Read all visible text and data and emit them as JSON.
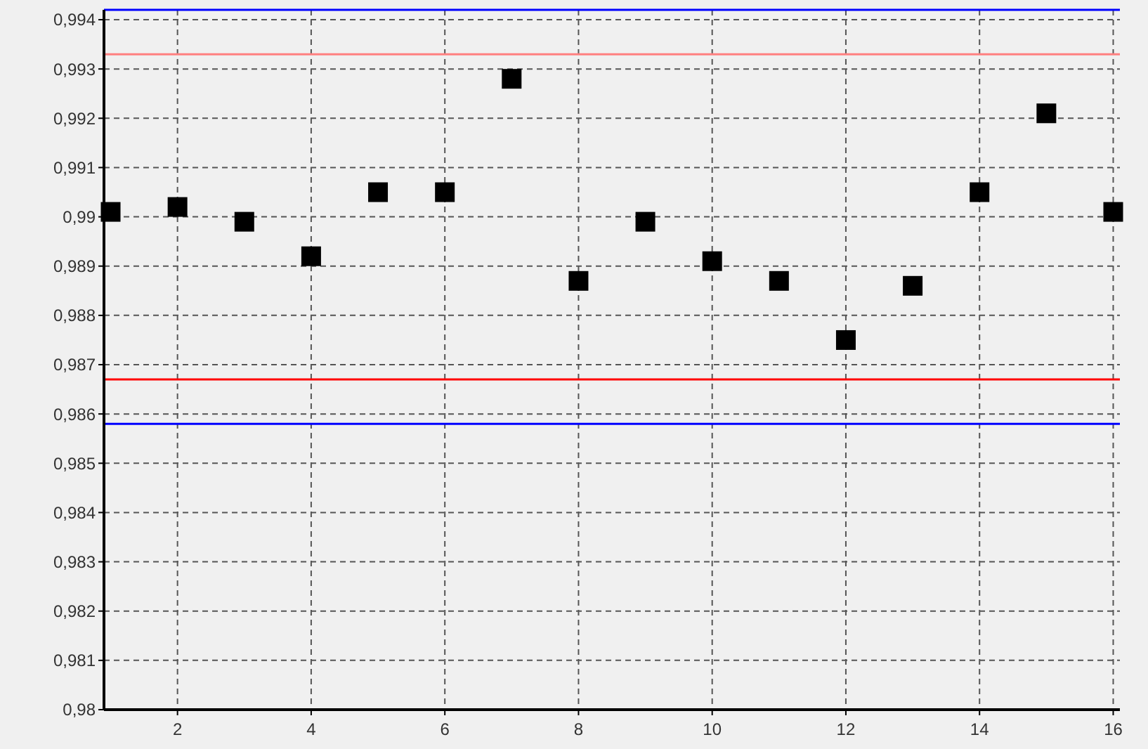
{
  "chart_data": {
    "type": "scatter",
    "x": [
      1,
      2,
      3,
      4,
      5,
      6,
      7,
      8,
      9,
      10,
      11,
      12,
      13,
      14,
      15,
      16
    ],
    "series": [
      {
        "color": "#000000",
        "values": [
          0.9901,
          0.9902,
          0.9899,
          0.9892,
          0.9905,
          0.9905,
          0.9928,
          0.9887,
          0.9899,
          0.9891,
          0.9887,
          0.9875,
          0.9886,
          0.9905,
          0.9921,
          0.9901
        ]
      }
    ],
    "xlim": [
      0.9,
      16.1
    ],
    "ylim": [
      0.98,
      0.9942
    ],
    "xticks": [
      2,
      4,
      6,
      8,
      10,
      12,
      14,
      16
    ],
    "yticks": [
      {
        "value": 0.98,
        "label": "0,98"
      },
      {
        "value": 0.981,
        "label": "0,981"
      },
      {
        "value": 0.982,
        "label": "0,982"
      },
      {
        "value": 0.983,
        "label": "0,983"
      },
      {
        "value": 0.984,
        "label": "0,984"
      },
      {
        "value": 0.985,
        "label": "0,985"
      },
      {
        "value": 0.986,
        "label": "0,986"
      },
      {
        "value": 0.987,
        "label": "0,987"
      },
      {
        "value": 0.988,
        "label": "0,988"
      },
      {
        "value": 0.989,
        "label": "0,989"
      },
      {
        "value": 0.99,
        "label": "0,99"
      },
      {
        "value": 0.991,
        "label": "0,991"
      },
      {
        "value": 0.992,
        "label": "0,992"
      },
      {
        "value": 0.993,
        "label": "0,993"
      },
      {
        "value": 0.994,
        "label": "0,994"
      }
    ],
    "ref_lines": [
      {
        "axis": "y",
        "value": 0.9942,
        "color": "#0000ff"
      },
      {
        "axis": "y",
        "value": 0.9933,
        "color": "#ff8080"
      },
      {
        "axis": "y",
        "value": 0.9867,
        "color": "#ff0000"
      },
      {
        "axis": "y",
        "value": 0.9858,
        "color": "#0000ff"
      }
    ],
    "grid": true,
    "marker": "square"
  }
}
